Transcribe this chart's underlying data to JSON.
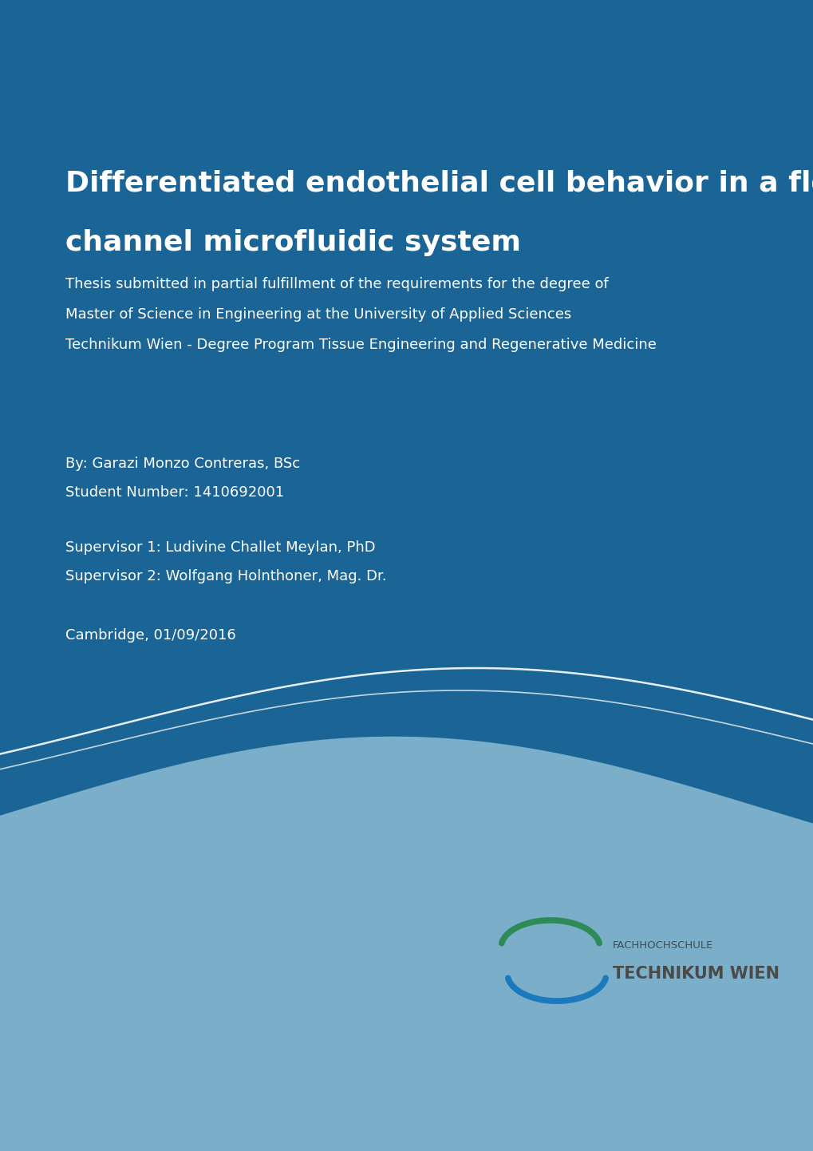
{
  "bg_blue": "#1a6496",
  "bg_white": "#ffffff",
  "wave_blue_dark": "#1a6496",
  "wave_blue_mid": "#7baec8",
  "wave_blue_light": "#a8c4d8",
  "title_line1": "Differentiated endothelial cell behavior in a flow",
  "title_line2": "channel microfluidic system",
  "subtitle_line1": "Thesis submitted in partial fulfillment of the requirements for the degree of",
  "subtitle_line2": "Master of Science in Engineering at the University of Applied Sciences",
  "subtitle_line3": "Technikum Wien - Degree Program Tissue Engineering and Regenerative Medicine",
  "author_line1": "By: Garazi Monzo Contreras, BSc",
  "author_line2": "Student Number: 1410692001",
  "supervisor_line1": "Supervisor 1: Ludivine Challet Meylan, PhD",
  "supervisor_line2": "Supervisor 2: Wolfgang Holnthoner, Mag. Dr.",
  "date_line": "Cambridge, 01/09/2016",
  "logo_text1": "FACHHOCHSCHULE",
  "logo_text2": "TECHNIKUM WIEN",
  "text_white": "#ffffff",
  "logo_color_dark": "#4a4a4a",
  "logo_green": "#2e8b57",
  "logo_blue": "#1a7abd",
  "title_fontsize": 26,
  "subtitle_fontsize": 13,
  "body_fontsize": 13
}
